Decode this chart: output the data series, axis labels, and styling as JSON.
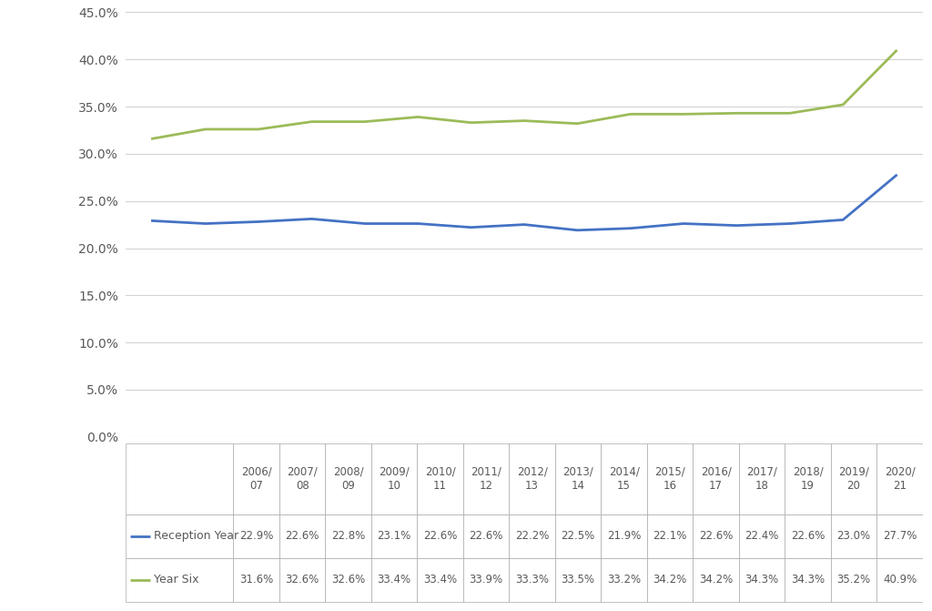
{
  "years": [
    "2006/\n07",
    "2007/\n08",
    "2008/\n09",
    "2009/\n10",
    "2010/\n11",
    "2011/\n12",
    "2012/\n13",
    "2013/\n14",
    "2014/\n15",
    "2015/\n16",
    "2016/\n17",
    "2017/\n18",
    "2018/\n19",
    "2019/\n20",
    "2020/\n21"
  ],
  "reception_year": [
    22.9,
    22.6,
    22.8,
    23.1,
    22.6,
    22.6,
    22.2,
    22.5,
    21.9,
    22.1,
    22.6,
    22.4,
    22.6,
    23.0,
    27.7
  ],
  "year_six": [
    31.6,
    32.6,
    32.6,
    33.4,
    33.4,
    33.9,
    33.3,
    33.5,
    33.2,
    34.2,
    34.2,
    34.3,
    34.3,
    35.2,
    40.9
  ],
  "reception_color": "#4472C4",
  "year_six_color": "#9BBB59",
  "ylim_min": 0.0,
  "ylim_max": 45.0,
  "yticks": [
    0.0,
    5.0,
    10.0,
    15.0,
    20.0,
    25.0,
    30.0,
    35.0,
    40.0,
    45.0
  ],
  "legend_reception": "Reception Year",
  "legend_year_six": "Year Six",
  "background_color": "#ffffff",
  "grid_color": "#d3d3d3",
  "table_reception_values": [
    "22.9%",
    "22.6%",
    "22.8%",
    "23.1%",
    "22.6%",
    "22.6%",
    "22.2%",
    "22.5%",
    "21.9%",
    "22.1%",
    "22.6%",
    "22.4%",
    "22.6%",
    "23.0%",
    "27.7%"
  ],
  "table_year_six_values": [
    "31.6%",
    "32.6%",
    "32.6%",
    "33.4%",
    "33.4%",
    "33.9%",
    "33.3%",
    "33.5%",
    "33.2%",
    "34.2%",
    "34.2%",
    "34.3%",
    "34.3%",
    "35.2%",
    "40.9%"
  ]
}
